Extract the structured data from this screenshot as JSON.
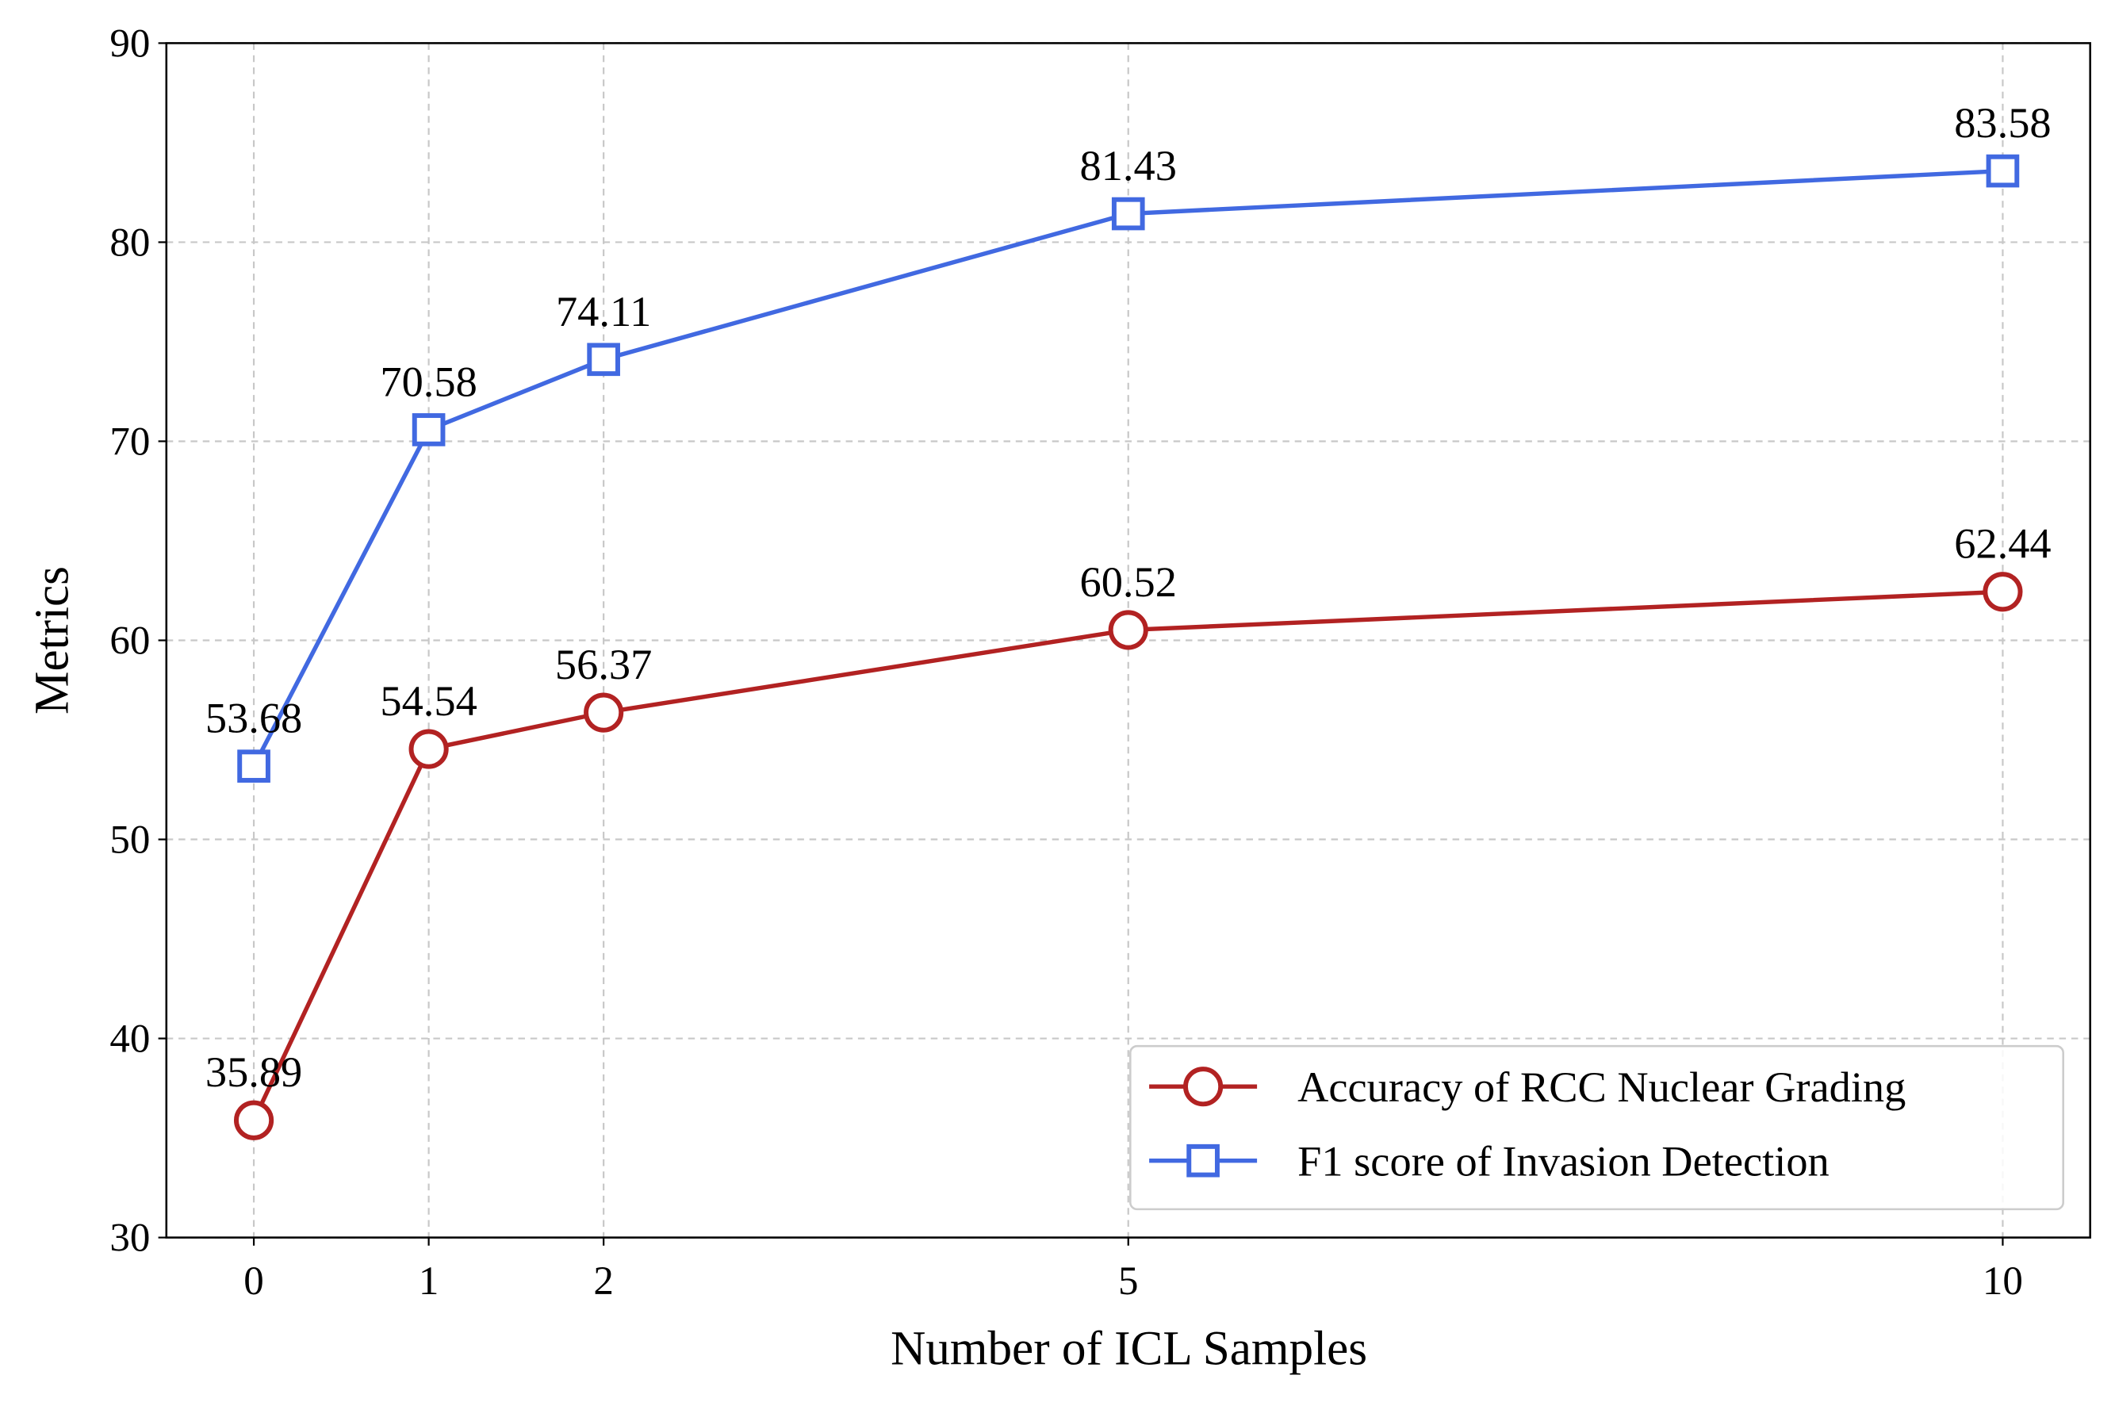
{
  "chart_data": {
    "type": "line",
    "title": "",
    "xlabel": "Number of ICL Samples",
    "ylabel": "Metrics",
    "x": [
      0,
      1,
      2,
      5,
      10
    ],
    "xticks": [
      "0",
      "1",
      "2",
      "5",
      "10"
    ],
    "xlim": [
      -0.5,
      10.5
    ],
    "ylim": [
      30,
      90
    ],
    "yticks": [
      "30",
      "40",
      "50",
      "60",
      "70",
      "80",
      "90"
    ],
    "grid": true,
    "legend_position": "lower-right",
    "series": [
      {
        "name": "Accuracy of RCC Nuclear Grading",
        "marker": "circle",
        "color": "#b22222",
        "values": [
          35.89,
          54.54,
          56.37,
          60.52,
          62.44
        ],
        "labels": [
          "35.89",
          "54.54",
          "56.37",
          "60.52",
          "62.44"
        ]
      },
      {
        "name": "F1 score of Invasion Detection",
        "marker": "square",
        "color": "#4169e1",
        "values": [
          53.68,
          70.58,
          74.11,
          81.43,
          83.58
        ],
        "labels": [
          "53.68",
          "70.58",
          "74.11",
          "81.43",
          "83.58"
        ]
      }
    ]
  }
}
